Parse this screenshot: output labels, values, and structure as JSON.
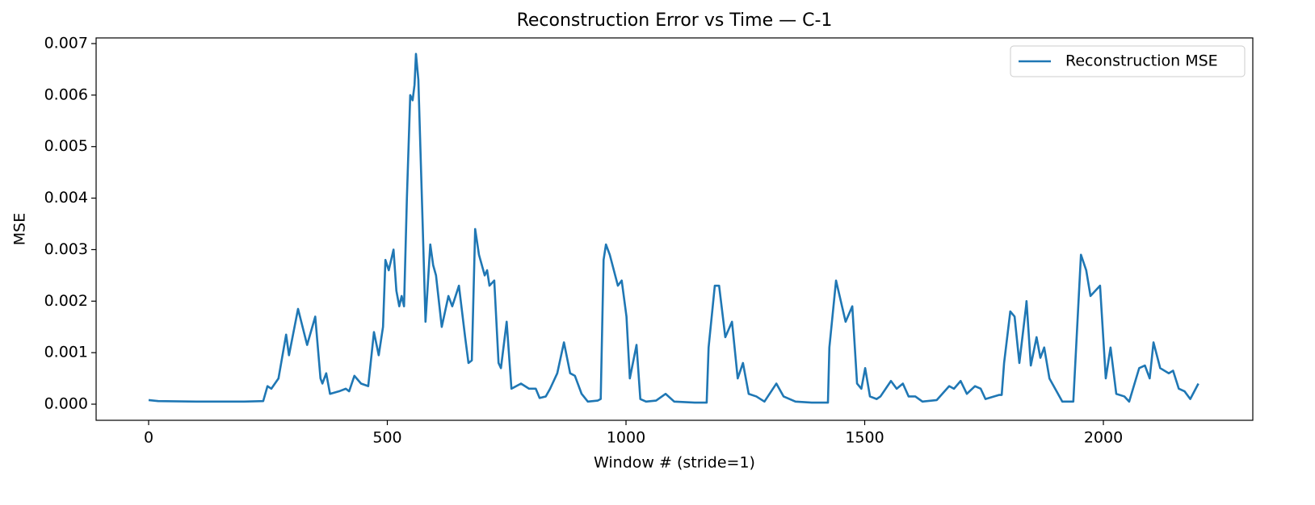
{
  "chart_data": {
    "type": "line",
    "title": "Reconstruction Error vs Time — C-1",
    "x_label": "Window # (stride=1)",
    "y_label": "MSE",
    "x": [
      0,
      20,
      100,
      200,
      240,
      249,
      257,
      272,
      288,
      294,
      313,
      332,
      349,
      360,
      364,
      372,
      380,
      399,
      413,
      420,
      431,
      445,
      460,
      472,
      482,
      491,
      496,
      503,
      513,
      519,
      525,
      530,
      535,
      541,
      548,
      553,
      557,
      560,
      565,
      574,
      580,
      590,
      596,
      602,
      614,
      628,
      636,
      643,
      650,
      663,
      670,
      677,
      684,
      692,
      704,
      709,
      714,
      724,
      733,
      738,
      750,
      760,
      780,
      797,
      811,
      819,
      832,
      841,
      856,
      870,
      883,
      893,
      907,
      920,
      941,
      947,
      953,
      958,
      966,
      983,
      991,
      1001,
      1008,
      1022,
      1030,
      1042,
      1063,
      1083,
      1101,
      1144,
      1169,
      1173,
      1186,
      1195,
      1208,
      1222,
      1234,
      1245,
      1257,
      1273,
      1290,
      1315,
      1330,
      1355,
      1389,
      1423,
      1426,
      1440,
      1450,
      1460,
      1474,
      1484,
      1493,
      1501,
      1511,
      1525,
      1533,
      1555,
      1567,
      1580,
      1592,
      1606,
      1621,
      1651,
      1677,
      1687,
      1701,
      1714,
      1731,
      1743,
      1753,
      1782,
      1787,
      1792,
      1805,
      1814,
      1824,
      1838,
      1839,
      1848,
      1860,
      1868,
      1876,
      1887,
      1905,
      1914,
      1937,
      1953,
      1964,
      1973,
      1993,
      2005,
      2015,
      2027,
      2044,
      2054,
      2075,
      2087,
      2097,
      2105,
      2119,
      2137,
      2146,
      2158,
      2170,
      2182,
      2199
    ],
    "series": [
      {
        "name": "Reconstruction MSE",
        "color": "#1f77b4",
        "values": [
          8e-05,
          6e-05,
          5e-05,
          5e-05,
          6e-05,
          0.00035,
          0.0003,
          0.0005,
          0.00135,
          0.00095,
          0.00185,
          0.00115,
          0.0017,
          0.0005,
          0.0004,
          0.0006,
          0.0002,
          0.00025,
          0.0003,
          0.00025,
          0.00055,
          0.0004,
          0.00035,
          0.0014,
          0.00095,
          0.0015,
          0.0028,
          0.0026,
          0.003,
          0.0022,
          0.0019,
          0.0021,
          0.0019,
          0.004,
          0.006,
          0.0059,
          0.0062,
          0.0068,
          0.0063,
          0.0035,
          0.0016,
          0.0031,
          0.0027,
          0.0025,
          0.0015,
          0.0021,
          0.0019,
          0.0021,
          0.0023,
          0.0013,
          0.0008,
          0.00085,
          0.0034,
          0.0029,
          0.0025,
          0.0026,
          0.0023,
          0.0024,
          0.0008,
          0.0007,
          0.0016,
          0.0003,
          0.0004,
          0.0003,
          0.0003,
          0.00012,
          0.00015,
          0.0003,
          0.0006,
          0.0012,
          0.0006,
          0.00055,
          0.0002,
          5e-05,
          7e-05,
          0.0001,
          0.0028,
          0.0031,
          0.0029,
          0.0023,
          0.0024,
          0.0017,
          0.0005,
          0.00115,
          0.0001,
          5e-05,
          7e-05,
          0.0002,
          5e-05,
          3e-05,
          3e-05,
          0.0011,
          0.0023,
          0.0023,
          0.0013,
          0.0016,
          0.0005,
          0.0008,
          0.0002,
          0.00015,
          5e-05,
          0.0004,
          0.00015,
          5e-05,
          3e-05,
          3e-05,
          0.0011,
          0.0024,
          0.002,
          0.0016,
          0.0019,
          0.0004,
          0.0003,
          0.0007,
          0.00015,
          0.0001,
          0.00015,
          0.00045,
          0.0003,
          0.0004,
          0.00015,
          0.00015,
          5e-05,
          8e-05,
          0.00035,
          0.0003,
          0.00045,
          0.0002,
          0.00035,
          0.0003,
          0.0001,
          0.00018,
          0.00018,
          0.0008,
          0.0018,
          0.0017,
          0.0008,
          0.0019,
          0.002,
          0.00075,
          0.0013,
          0.0009,
          0.0011,
          0.0005,
          0.0002,
          5e-05,
          5e-05,
          0.0029,
          0.0026,
          0.0021,
          0.0023,
          0.0005,
          0.0011,
          0.0002,
          0.00015,
          5e-05,
          0.0007,
          0.00075,
          0.0005,
          0.0012,
          0.0007,
          0.0006,
          0.00065,
          0.0003,
          0.00025,
          0.0001,
          0.0004
        ]
      }
    ],
    "xlim": [
      -110,
      2313
    ],
    "ylim": [
      -0.000313,
      0.00711
    ],
    "xticks": [
      0,
      500,
      1000,
      1500,
      2000
    ],
    "yticks": [
      {
        "value": 0,
        "label": "0.000"
      },
      {
        "value": 0.001,
        "label": "0.001"
      },
      {
        "value": 0.002,
        "label": "0.002"
      },
      {
        "value": 0.003,
        "label": "0.003"
      },
      {
        "value": 0.004,
        "label": "0.004"
      },
      {
        "value": 0.005,
        "label": "0.005"
      },
      {
        "value": 0.006,
        "label": "0.006"
      },
      {
        "value": 0.007,
        "label": "0.007"
      }
    ],
    "legend": "upper right"
  }
}
